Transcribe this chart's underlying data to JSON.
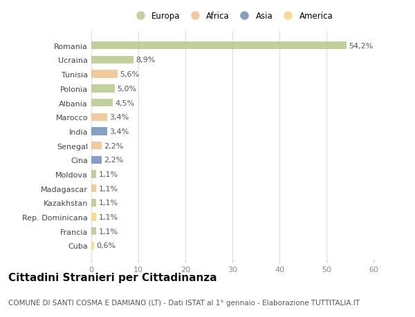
{
  "countries": [
    "Romania",
    "Ucraina",
    "Tunisia",
    "Polonia",
    "Albania",
    "Marocco",
    "India",
    "Senegal",
    "Cina",
    "Moldova",
    "Madagascar",
    "Kazakhstan",
    "Rep. Dominicana",
    "Francia",
    "Cuba"
  ],
  "values": [
    54.2,
    8.9,
    5.6,
    5.0,
    4.5,
    3.4,
    3.4,
    2.2,
    2.2,
    1.1,
    1.1,
    1.1,
    1.1,
    1.1,
    0.6
  ],
  "labels": [
    "54,2%",
    "8,9%",
    "5,6%",
    "5,0%",
    "4,5%",
    "3,4%",
    "3,4%",
    "2,2%",
    "2,2%",
    "1,1%",
    "1,1%",
    "1,1%",
    "1,1%",
    "1,1%",
    "0,6%"
  ],
  "continents": [
    "Europa",
    "Europa",
    "Africa",
    "Europa",
    "Europa",
    "Africa",
    "Asia",
    "Africa",
    "Asia",
    "Europa",
    "Africa",
    "Europa",
    "America",
    "Europa",
    "America"
  ],
  "colors": {
    "Europa": "#b5c98a",
    "Africa": "#f2c18a",
    "Asia": "#7090bb",
    "America": "#f5d87a"
  },
  "bar_alpha": 0.85,
  "xlim": [
    0,
    60
  ],
  "xticks": [
    0,
    10,
    20,
    30,
    40,
    50,
    60
  ],
  "title": "Cittadini Stranieri per Cittadinanza",
  "subtitle": "COMUNE DI SANTI COSMA E DAMIANO (LT) - Dati ISTAT al 1° gennaio - Elaborazione TUTTITALIA.IT",
  "background_color": "#ffffff",
  "grid_color": "#dddddd",
  "bar_height": 0.55,
  "label_fontsize": 8,
  "tick_fontsize": 8,
  "title_fontsize": 11,
  "subtitle_fontsize": 7.5
}
